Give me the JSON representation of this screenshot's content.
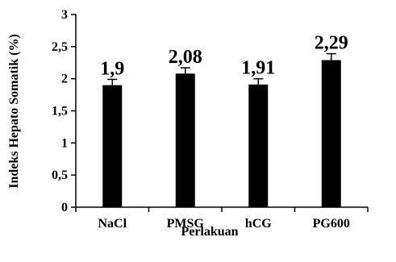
{
  "chart_data": {
    "type": "bar",
    "categories": [
      "NaCl",
      "PMSG",
      "hCG",
      "PG600"
    ],
    "values": [
      1.9,
      2.08,
      1.91,
      2.29
    ],
    "data_labels": [
      "1,9",
      "2,08",
      "1,91",
      "2,29"
    ],
    "errors": [
      0.09,
      0.09,
      0.09,
      0.1
    ],
    "xlabel": "Perlakuan",
    "ylabel": "Indeks Hepato Somatik  (%)",
    "ylim": [
      0,
      3
    ],
    "yticks": [
      0,
      0.5,
      1,
      1.5,
      2,
      2.5,
      3
    ],
    "ytick_labels": [
      "0",
      "0,5",
      "1",
      "1,5",
      "2",
      "2,5",
      "3"
    ],
    "bar_color": "#000000",
    "grid": false,
    "legend": "none"
  }
}
